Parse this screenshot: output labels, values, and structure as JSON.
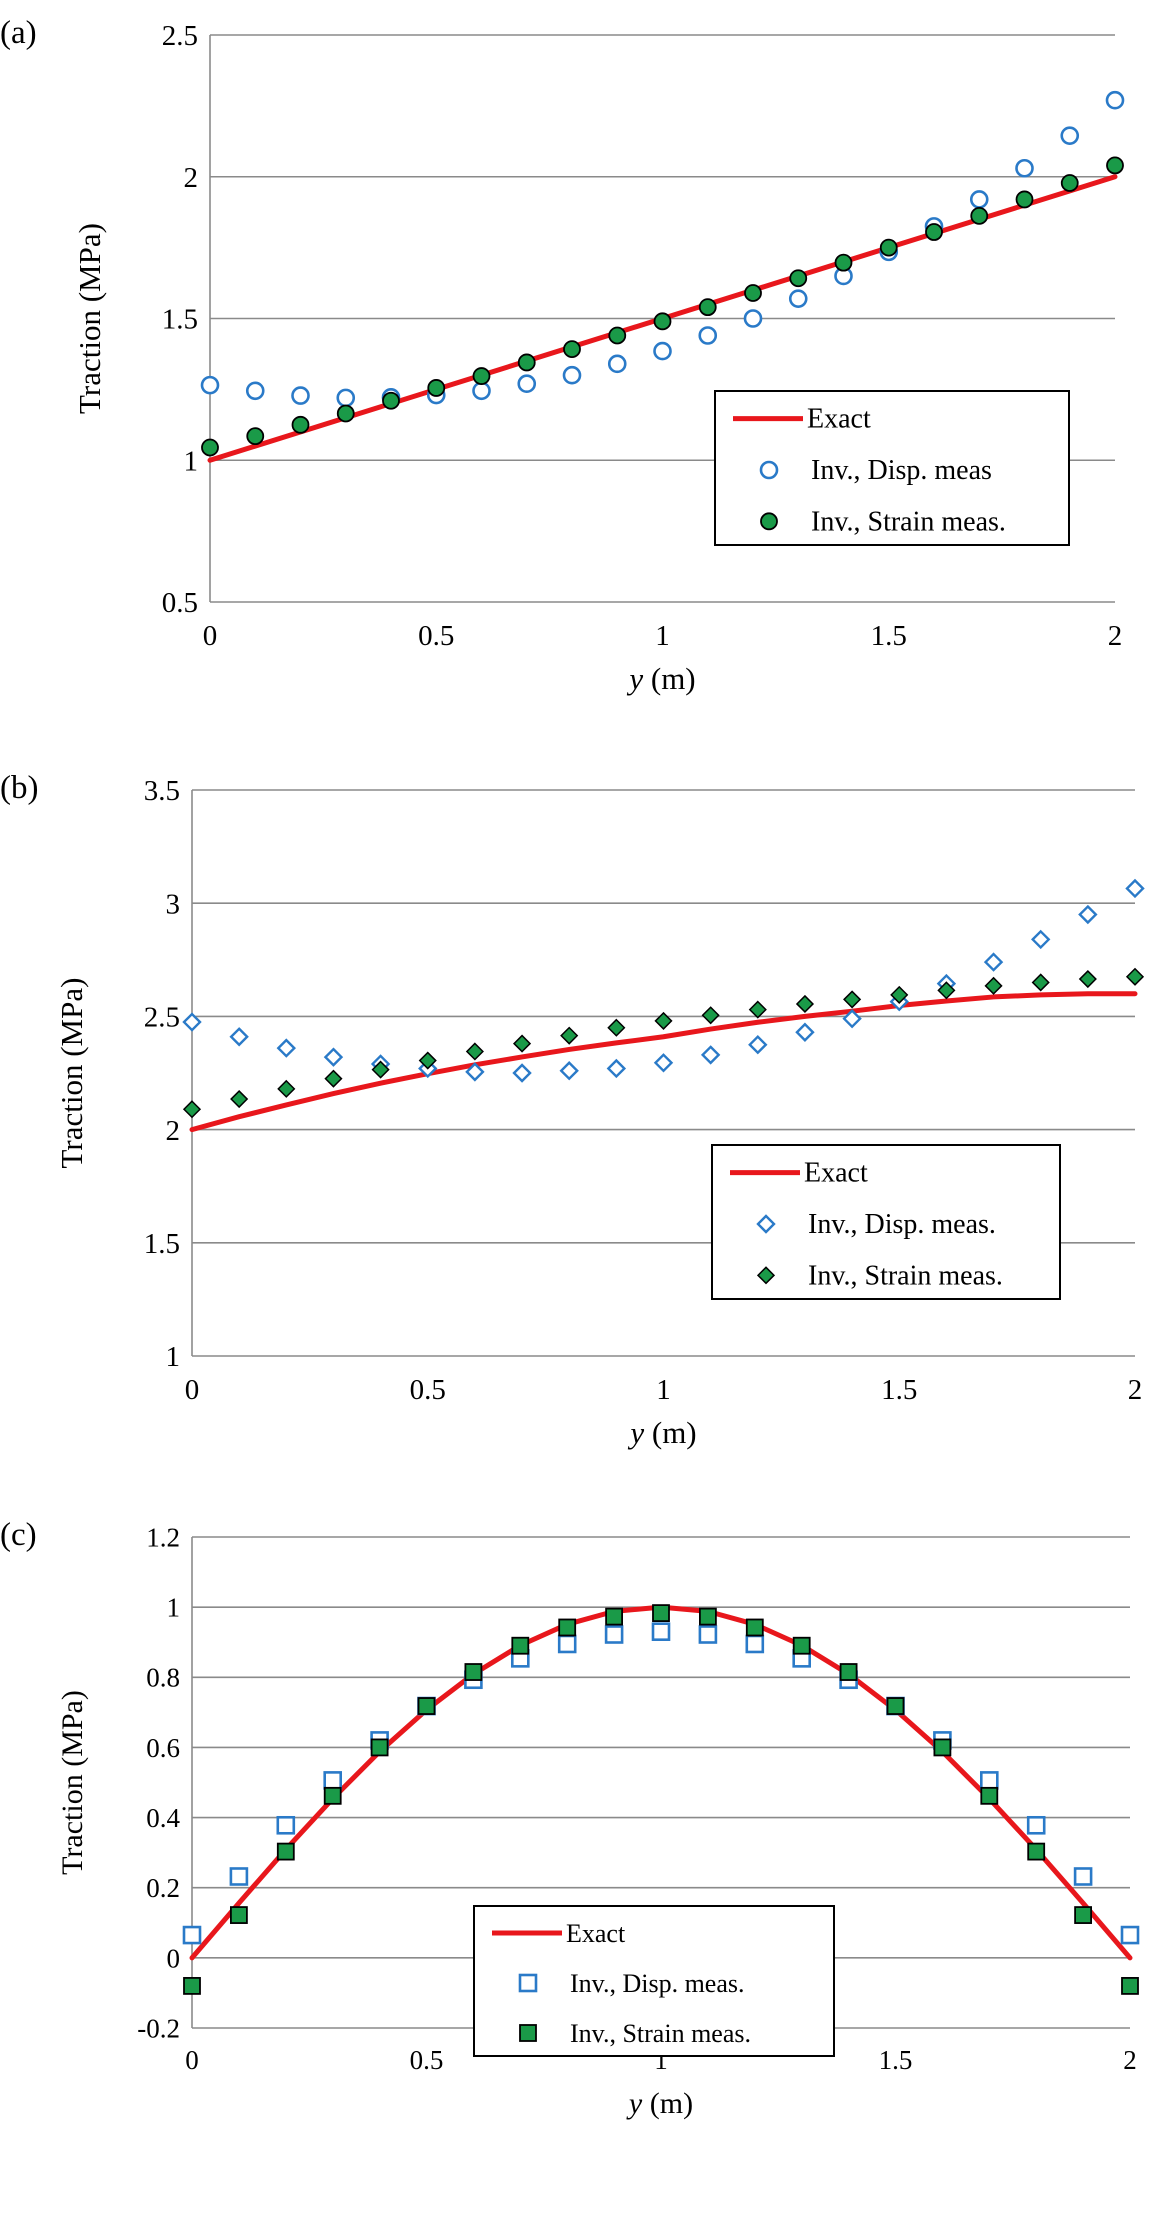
{
  "chart_data": [
    {
      "panel_label": "(a)",
      "type": "line+scatter",
      "xlabel_italic": "y",
      "xlabel_rest": " (m)",
      "ylabel": "Traction (MPa)",
      "xlim": [
        0,
        2
      ],
      "ylim": [
        0.5,
        2.5
      ],
      "xticks": [
        0,
        0.5,
        1,
        1.5,
        2
      ],
      "xtick_labels": [
        "0",
        "0.5",
        "1",
        "1.5",
        "2"
      ],
      "yticks": [
        0.5,
        1,
        1.5,
        2,
        2.5
      ],
      "ytick_labels": [
        "0.5",
        "1",
        "1.5",
        "2",
        "2.5"
      ],
      "grid": "horizontal",
      "legend_position": "lower-right",
      "series": [
        {
          "name": "Exact",
          "kind": "line",
          "color": "#e8171c",
          "x": [
            0,
            2
          ],
          "y": [
            1,
            2
          ]
        },
        {
          "name": "Inv., Disp. meas",
          "kind": "marker",
          "marker": "circle-open",
          "color": "#2a7ac8",
          "x": [
            0,
            0.1,
            0.2,
            0.3,
            0.4,
            0.5,
            0.6,
            0.7,
            0.8,
            0.9,
            1.0,
            1.1,
            1.2,
            1.3,
            1.4,
            1.5,
            1.6,
            1.7,
            1.8,
            1.9,
            2.0
          ],
          "y": [
            1.265,
            1.245,
            1.228,
            1.22,
            1.222,
            1.23,
            1.245,
            1.27,
            1.3,
            1.34,
            1.385,
            1.44,
            1.5,
            1.57,
            1.65,
            1.735,
            1.825,
            1.92,
            2.03,
            2.145,
            2.27
          ]
        },
        {
          "name": "Inv., Strain meas.",
          "kind": "marker",
          "marker": "circle-filled",
          "color": "#1a9a48",
          "x": [
            0,
            0.1,
            0.2,
            0.3,
            0.4,
            0.5,
            0.6,
            0.7,
            0.8,
            0.9,
            1.0,
            1.1,
            1.2,
            1.3,
            1.4,
            1.5,
            1.6,
            1.7,
            1.8,
            1.9,
            2.0
          ],
          "y": [
            1.045,
            1.085,
            1.125,
            1.165,
            1.21,
            1.255,
            1.297,
            1.345,
            1.392,
            1.44,
            1.49,
            1.54,
            1.59,
            1.642,
            1.697,
            1.75,
            1.805,
            1.862,
            1.92,
            1.978,
            2.04
          ]
        }
      ]
    },
    {
      "panel_label": "(b)",
      "type": "line+scatter",
      "xlabel_italic": "y",
      "xlabel_rest": " (m)",
      "ylabel": "Traction (MPa)",
      "xlim": [
        0,
        2
      ],
      "ylim": [
        1,
        3.5
      ],
      "xticks": [
        0,
        0.5,
        1,
        1.5,
        2
      ],
      "xtick_labels": [
        "0",
        "0.5",
        "1",
        "1.5",
        "2"
      ],
      "yticks": [
        1,
        1.5,
        2,
        2.5,
        3,
        3.5
      ],
      "ytick_labels": [
        "1",
        "1.5",
        "2",
        "2.5",
        "3",
        "3.5"
      ],
      "grid": "horizontal",
      "legend_position": "lower-right",
      "series": [
        {
          "name": "Exact",
          "kind": "line",
          "color": "#e8171c",
          "x": [
            0,
            0.1,
            0.2,
            0.3,
            0.4,
            0.5,
            0.6,
            0.7,
            0.8,
            0.9,
            1.0,
            1.1,
            1.2,
            1.3,
            1.4,
            1.5,
            1.6,
            1.7,
            1.8,
            1.9,
            2.0
          ],
          "y": [
            2.0,
            2.057,
            2.109,
            2.159,
            2.205,
            2.247,
            2.286,
            2.321,
            2.354,
            2.383,
            2.41,
            2.444,
            2.474,
            2.5,
            2.523,
            2.548,
            2.568,
            2.586,
            2.595,
            2.6,
            2.6
          ]
        },
        {
          "name": "Inv., Disp. meas.",
          "kind": "marker",
          "marker": "diamond-open",
          "color": "#2a7ac8",
          "x": [
            0,
            0.1,
            0.2,
            0.3,
            0.4,
            0.5,
            0.6,
            0.7,
            0.8,
            0.9,
            1.0,
            1.1,
            1.2,
            1.3,
            1.4,
            1.5,
            1.6,
            1.7,
            1.8,
            1.9,
            2.0
          ],
          "y": [
            2.475,
            2.41,
            2.36,
            2.32,
            2.29,
            2.27,
            2.255,
            2.25,
            2.26,
            2.27,
            2.295,
            2.33,
            2.375,
            2.43,
            2.49,
            2.565,
            2.645,
            2.74,
            2.84,
            2.95,
            3.065
          ]
        },
        {
          "name": "Inv., Strain meas.",
          "kind": "marker",
          "marker": "diamond-filled",
          "color": "#1a9a48",
          "x": [
            0,
            0.1,
            0.2,
            0.3,
            0.4,
            0.5,
            0.6,
            0.7,
            0.8,
            0.9,
            1.0,
            1.1,
            1.2,
            1.3,
            1.4,
            1.5,
            1.6,
            1.7,
            1.8,
            1.9,
            2.0
          ],
          "y": [
            2.09,
            2.135,
            2.18,
            2.225,
            2.265,
            2.305,
            2.345,
            2.38,
            2.415,
            2.45,
            2.48,
            2.505,
            2.53,
            2.555,
            2.575,
            2.595,
            2.615,
            2.635,
            2.65,
            2.665,
            2.675
          ]
        }
      ]
    },
    {
      "panel_label": "(c)",
      "type": "line+scatter",
      "xlabel_italic": "y",
      "xlabel_rest": " (m)",
      "ylabel": "Traction (MPa)",
      "xlim": [
        0,
        2
      ],
      "ylim": [
        -0.2,
        1.2
      ],
      "xticks": [
        0,
        0.5,
        1,
        1.5,
        2
      ],
      "xtick_labels": [
        "0",
        "0.5",
        "1",
        "1.5",
        "2"
      ],
      "yticks": [
        -0.2,
        0,
        0.2,
        0.4,
        0.6,
        0.8,
        1,
        1.2
      ],
      "ytick_labels": [
        "-0.2",
        "0",
        "0.2",
        "0.4",
        "0.6",
        "0.8",
        "1",
        "1.2"
      ],
      "grid": "horizontal",
      "legend_position": "lower-center",
      "series": [
        {
          "name": "Exact",
          "kind": "line",
          "color": "#e8171c",
          "x": [
            0,
            0.1,
            0.2,
            0.3,
            0.4,
            0.5,
            0.6,
            0.7,
            0.8,
            0.9,
            1.0,
            1.1,
            1.2,
            1.3,
            1.4,
            1.5,
            1.6,
            1.7,
            1.8,
            1.9,
            2.0
          ],
          "y": [
            0,
            0.156,
            0.309,
            0.454,
            0.588,
            0.707,
            0.809,
            0.891,
            0.951,
            0.988,
            1.0,
            0.988,
            0.951,
            0.891,
            0.809,
            0.707,
            0.588,
            0.454,
            0.309,
            0.156,
            0
          ]
        },
        {
          "name": "Inv., Disp. meas.",
          "kind": "marker",
          "marker": "square-open",
          "color": "#2a7ac8",
          "x": [
            0,
            0.1,
            0.2,
            0.3,
            0.4,
            0.5,
            0.6,
            0.7,
            0.8,
            0.9,
            1.0,
            1.1,
            1.2,
            1.3,
            1.4,
            1.5,
            1.6,
            1.7,
            1.8,
            1.9,
            2.0
          ],
          "y": [
            0.065,
            0.232,
            0.378,
            0.506,
            0.62,
            0.718,
            0.793,
            0.854,
            0.895,
            0.922,
            0.93,
            0.922,
            0.895,
            0.854,
            0.793,
            0.718,
            0.62,
            0.506,
            0.378,
            0.232,
            0.065
          ]
        },
        {
          "name": "Inv., Strain meas.",
          "kind": "marker",
          "marker": "square-filled",
          "color": "#1a9a48",
          "x": [
            0,
            0.1,
            0.2,
            0.3,
            0.4,
            0.5,
            0.6,
            0.7,
            0.8,
            0.9,
            1.0,
            1.1,
            1.2,
            1.3,
            1.4,
            1.5,
            1.6,
            1.7,
            1.8,
            1.9,
            2.0
          ],
          "y": [
            -0.08,
            0.122,
            0.303,
            0.462,
            0.6,
            0.718,
            0.815,
            0.89,
            0.942,
            0.973,
            0.983,
            0.973,
            0.942,
            0.89,
            0.815,
            0.718,
            0.6,
            0.462,
            0.303,
            0.122,
            -0.08
          ]
        }
      ]
    }
  ]
}
